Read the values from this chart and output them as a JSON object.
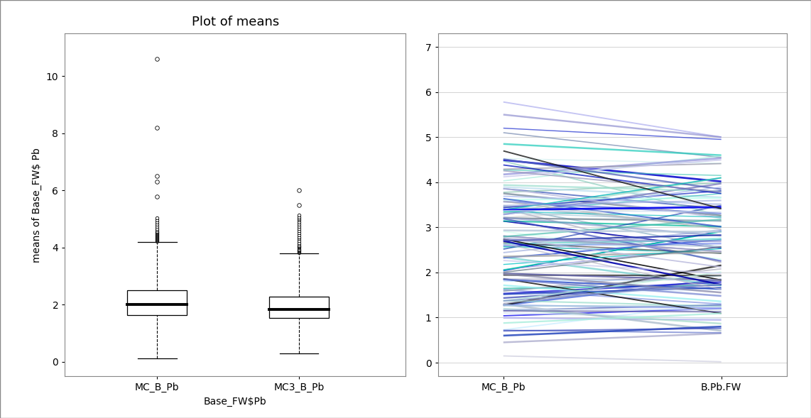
{
  "left_title": "Plot of means",
  "left_xlabel": "Base_FW$Pb",
  "left_ylabel": "means of Base_FW$ Pb",
  "left_xtick_labels": [
    "MC_B_Pb",
    "MC3_B_Pb"
  ],
  "left_ylim": [
    -0.5,
    11.5
  ],
  "left_yticks": [
    0,
    2,
    4,
    6,
    8,
    10
  ],
  "box1": {
    "median": 2.0,
    "q1": 1.65,
    "q3": 2.5,
    "whisker_low": 0.12,
    "whisker_high": 4.2,
    "outliers_dense": [
      4.22,
      4.25,
      4.28,
      4.3,
      4.32,
      4.35,
      4.37,
      4.4,
      4.42,
      4.45,
      4.48,
      4.5,
      4.52,
      4.55,
      4.58,
      4.62,
      4.68,
      4.75,
      4.82,
      4.9,
      4.97,
      5.05
    ],
    "outliers_sparse": [
      5.8,
      6.3,
      6.5,
      8.2,
      10.6
    ]
  },
  "box2": {
    "median": 1.85,
    "q1": 1.55,
    "q3": 2.28,
    "whisker_low": 0.3,
    "whisker_high": 3.8,
    "outliers_dense": [
      3.82,
      3.85,
      3.88,
      3.9,
      3.93,
      3.96,
      3.99,
      4.02,
      4.05,
      4.08,
      4.12,
      4.18,
      4.25,
      4.32,
      4.38,
      4.45,
      4.52,
      4.6,
      4.68,
      4.75,
      4.82,
      4.9,
      4.97,
      5.02,
      5.08,
      5.15
    ],
    "outliers_sparse": [
      5.5,
      6.0
    ]
  },
  "right_xlabel_left": "MC_B_Pb",
  "right_xlabel_right": "B.Pb.FW",
  "right_ylim": [
    -0.3,
    7.3
  ],
  "right_yticks": [
    0,
    1,
    2,
    3,
    4,
    5,
    6,
    7
  ],
  "background_color": "#ffffff",
  "outer_border_color": "#888888",
  "line_colors_pool": [
    "#000000",
    "#111111",
    "#222222",
    "#0000aa",
    "#0000cc",
    "#0000ee",
    "#1133aa",
    "#2244bb",
    "#3355cc",
    "#4466dd",
    "#2233aa",
    "#3344bb",
    "#1122cc",
    "#0011bb",
    "#5566bb",
    "#6677cc",
    "#7788dd",
    "#8899ee",
    "#6666aa",
    "#7777bb",
    "#8888cc",
    "#9999dd",
    "#aaaaee",
    "#8899cc",
    "#99aadd",
    "#aabbee",
    "#9999bb",
    "#aaaacc",
    "#bbbbdd",
    "#ccccee",
    "#aabbcc",
    "#bbccdd",
    "#ccdded",
    "#ddeeee",
    "#bbbbcc",
    "#ccccdd",
    "#00aa99",
    "#00bb99",
    "#00ccaa",
    "#11bbaa",
    "#22ccbb",
    "#00aaaa",
    "#00bbbb",
    "#11bbbb",
    "#22cccc",
    "#44bbaa",
    "#55ccbb",
    "#66ddcc",
    "#66cccc",
    "#77dddd",
    "#88eeee",
    "#99ddcc",
    "#aaeedd",
    "#bbffee",
    "#aaddcc",
    "#bbeedd",
    "#ccffee",
    "#88ccbb",
    "#99ddcc",
    "#aaeedd",
    "#99ccbb",
    "#aaddcc",
    "#ccddee",
    "#ddeeff",
    "#cceeff",
    "#bbddff",
    "#aaccdd",
    "#bbddee",
    "#cceeee",
    "#99bbcc",
    "#aaccdd",
    "#7799aa",
    "#8899bb",
    "#556677",
    "#667788",
    "#778899",
    "#aaaaaa",
    "#bbbbbb",
    "#cccccc",
    "#dddddd",
    "#9999aa",
    "#aaaabb",
    "#bbbbcc",
    "#8888aa",
    "#9999bb"
  ]
}
